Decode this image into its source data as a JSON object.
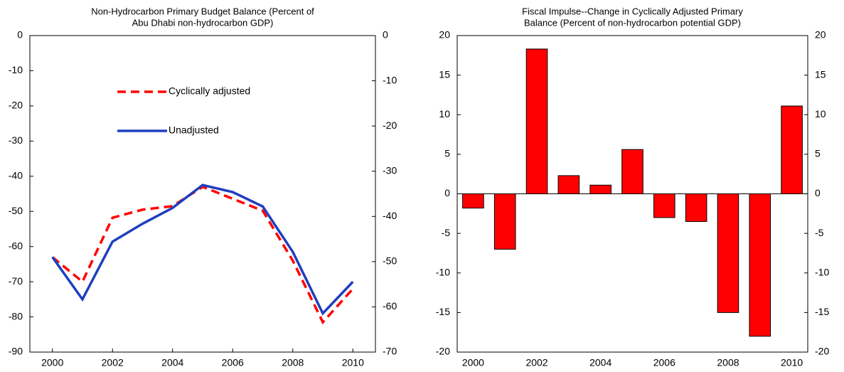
{
  "chart_data": [
    {
      "type": "line",
      "title": [
        "Non-Hydrocarbon Primary Budget Balance (Percent of",
        "Abu Dhabi non-hydrocarbon GDP)"
      ],
      "x": [
        2000,
        2001,
        2002,
        2003,
        2004,
        2005,
        2006,
        2007,
        2008,
        2009,
        2010
      ],
      "xlim": [
        1999.25,
        2010.75
      ],
      "xticks": [
        2000,
        2002,
        2004,
        2006,
        2008,
        2010
      ],
      "ylim": [
        -90,
        0
      ],
      "yticks": [
        0,
        -10,
        -20,
        -30,
        -40,
        -50,
        -60,
        -70,
        -80,
        -90
      ],
      "y2lim": [
        -70,
        0
      ],
      "y2ticks": [
        0,
        -10,
        -20,
        -30,
        -40,
        -50,
        -60,
        -70
      ],
      "legend": "upper center",
      "series": [
        {
          "name": "Cyclically adjusted",
          "color": "#ff0000",
          "dash": true,
          "values": [
            -63,
            -70,
            -51.8,
            -49.5,
            -48.5,
            -43,
            -46.4,
            -49.8,
            -64,
            -81.5,
            -72
          ]
        },
        {
          "name": "Unadjusted",
          "color": "#1f3fbf",
          "dash": false,
          "values": [
            -63,
            -75,
            -58.6,
            -53.5,
            -49,
            -42.5,
            -44.5,
            -48.6,
            -61.5,
            -79,
            -70
          ]
        }
      ]
    },
    {
      "type": "bar",
      "title": [
        "Fiscal Impulse--Change in Cyclically Adjusted Primary",
        "Balance (Percent of non-hydrocarbon potential GDP)"
      ],
      "categories": [
        "2000",
        null,
        "2002",
        null,
        "2004",
        null,
        "2006",
        null,
        "2008",
        null,
        "2010"
      ],
      "values": [
        -1.8,
        -7,
        18.3,
        2.3,
        1.1,
        5.6,
        -3,
        -3.5,
        -15,
        -18,
        11.1
      ],
      "color": "#ff0000",
      "ylim": [
        -20,
        20
      ],
      "yticks": [
        20,
        15,
        10,
        5,
        0,
        -5,
        -10,
        -15,
        -20
      ],
      "y2lim": [
        -20,
        20
      ],
      "y2ticks": [
        20,
        15,
        10,
        5,
        0,
        -5,
        -10,
        -15,
        -20
      ]
    }
  ]
}
